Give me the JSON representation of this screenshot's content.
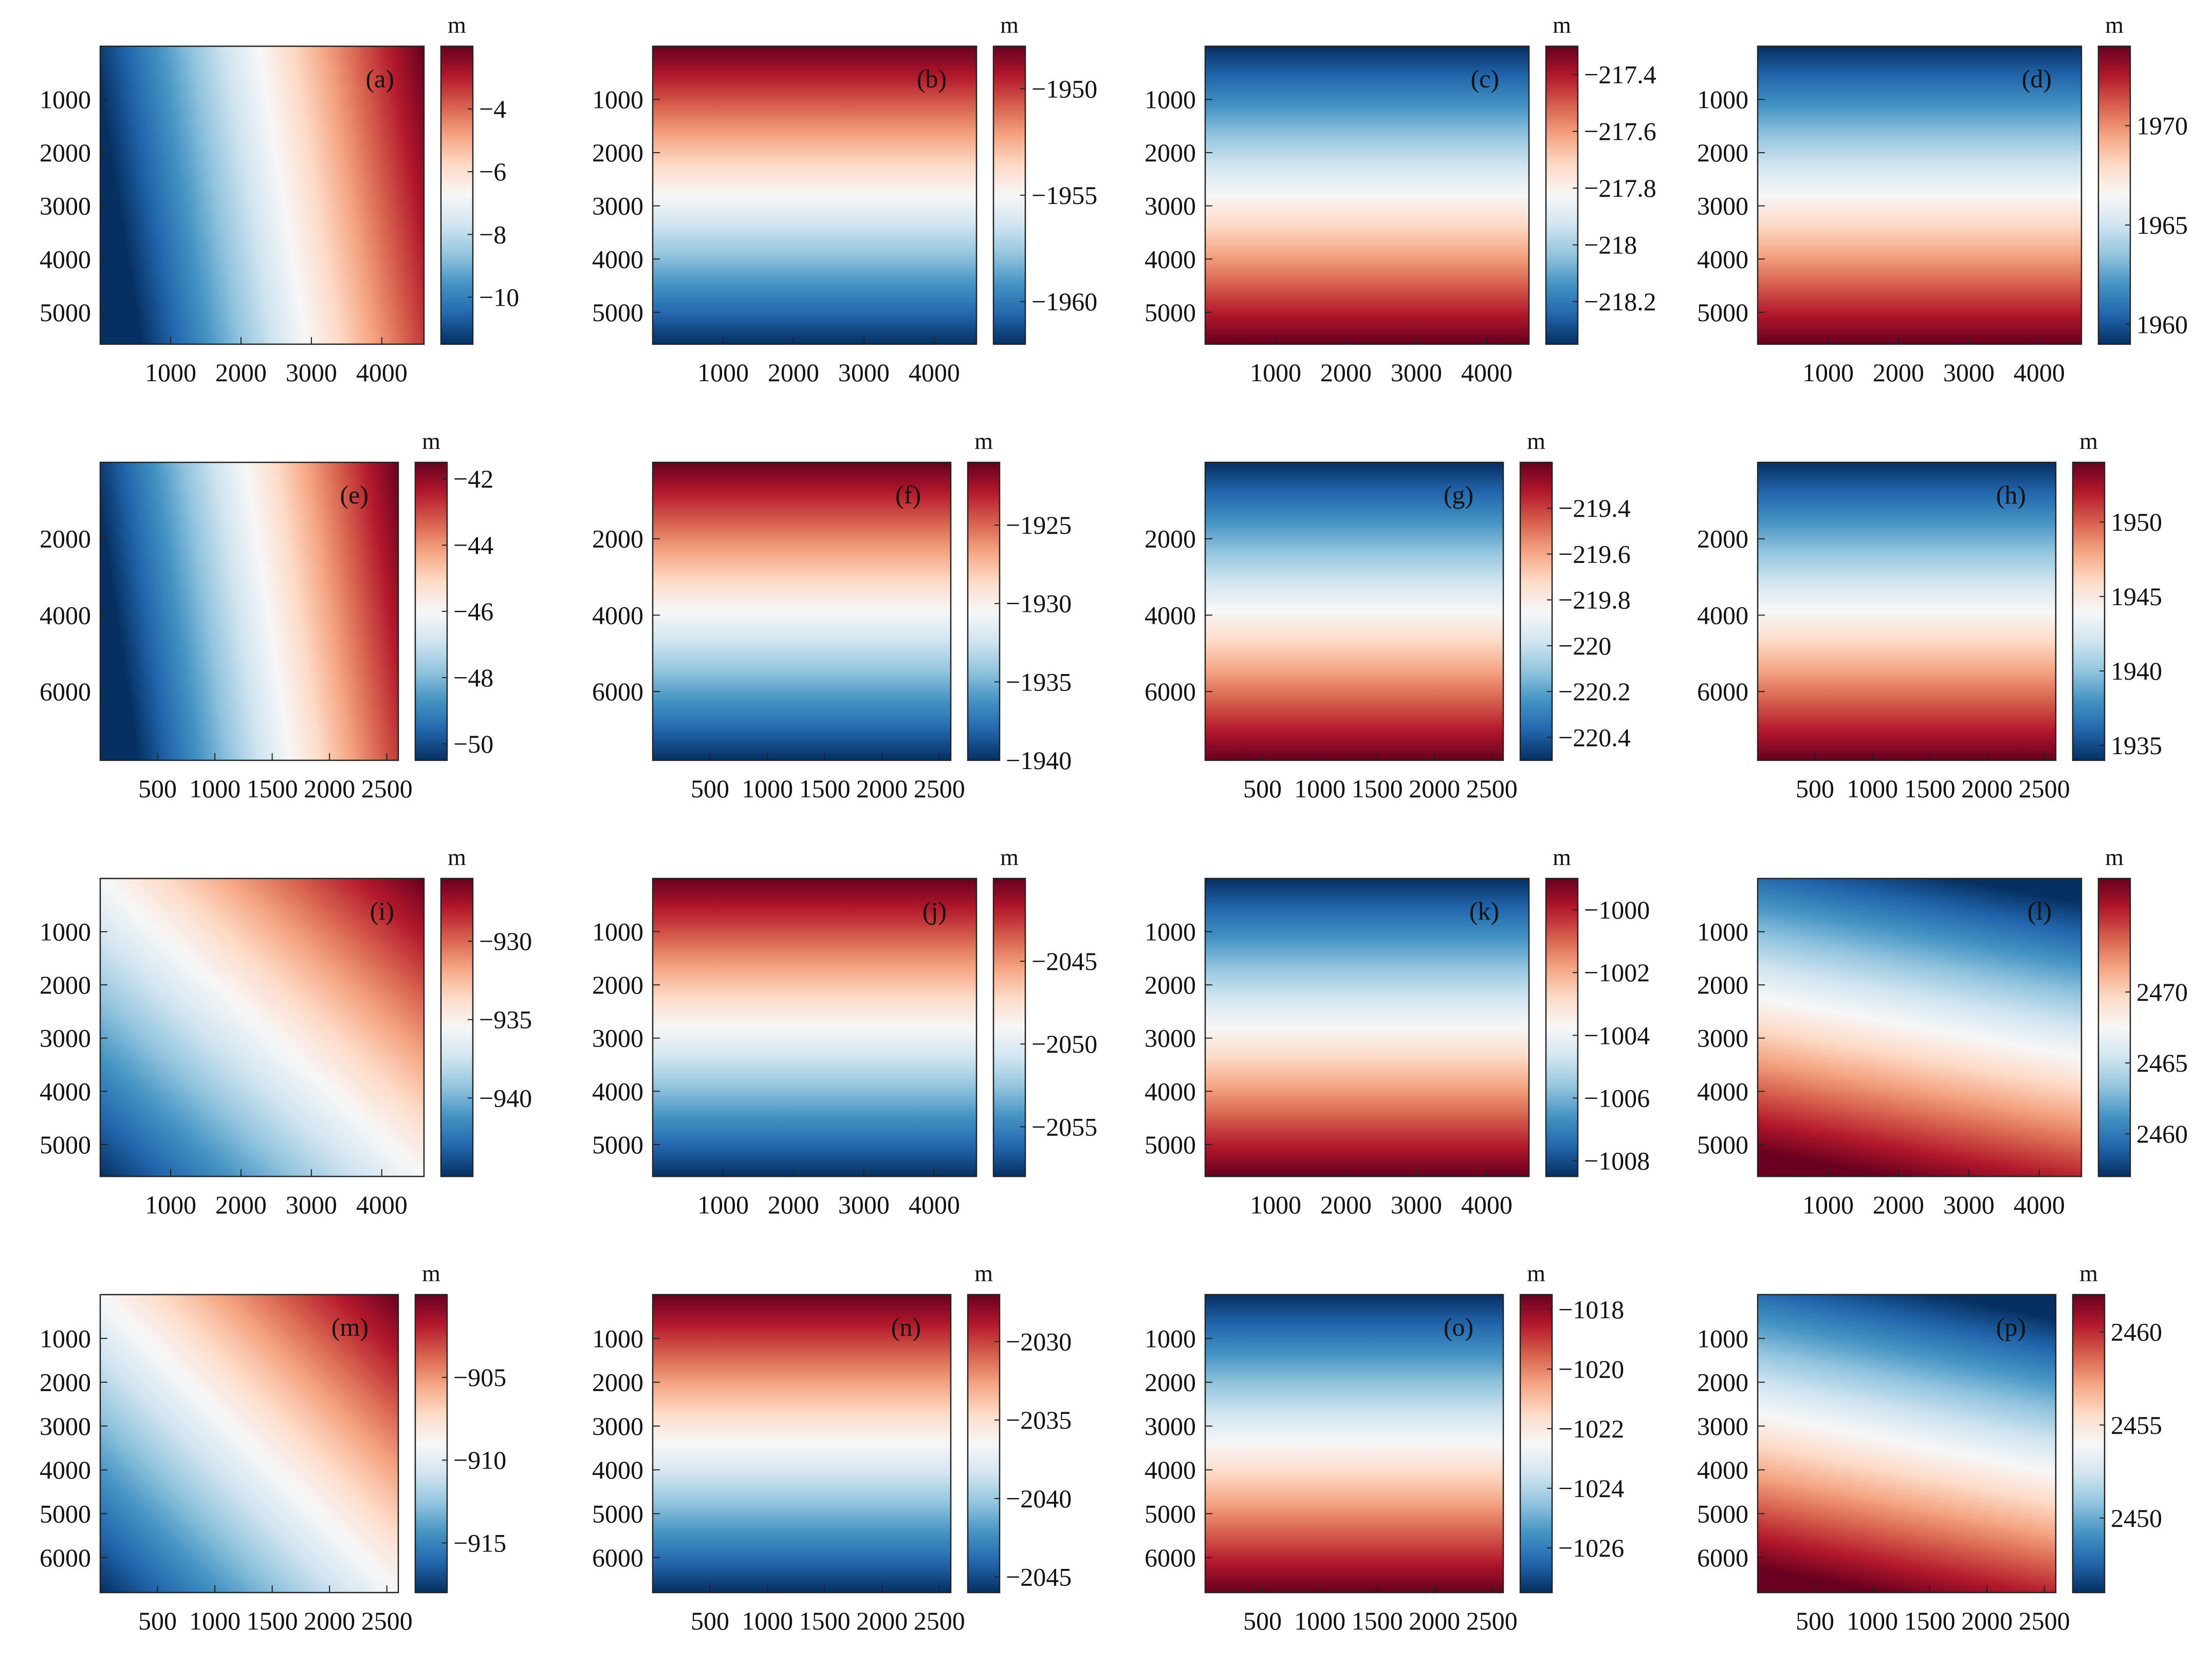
{
  "figure": {
    "unit_label": "m",
    "colormap": [
      "#053061",
      "#2166ac",
      "#4393c3",
      "#92c5de",
      "#d1e5f0",
      "#f7f7f7",
      "#fddbc7",
      "#f4a582",
      "#d6604d",
      "#b2182b",
      "#67001f"
    ]
  },
  "chart_data": [
    {
      "id": "a",
      "label": "(a)",
      "type": "heatmap",
      "gradient": "x",
      "xlim": [
        0,
        4600
      ],
      "ylim": [
        0,
        5600
      ],
      "xticks": [
        1000,
        2000,
        3000,
        4000
      ],
      "yticks": [
        1000,
        2000,
        3000,
        4000,
        5000
      ],
      "clim": [
        -11.5,
        -2
      ],
      "cbar_ticks": [
        -10,
        -8,
        -6,
        -4
      ]
    },
    {
      "id": "b",
      "label": "(b)",
      "type": "heatmap",
      "gradient": "y",
      "xlim": [
        0,
        4600
      ],
      "ylim": [
        0,
        5600
      ],
      "xticks": [
        1000,
        2000,
        3000,
        4000
      ],
      "yticks": [
        1000,
        2000,
        3000,
        4000,
        5000
      ],
      "clim": [
        -1962,
        -1948
      ],
      "cbar_ticks": [
        -1960,
        -1955,
        -1950
      ]
    },
    {
      "id": "c",
      "label": "(c)",
      "type": "heatmap",
      "gradient": "y",
      "xlim": [
        0,
        4600
      ],
      "ylim": [
        0,
        5600
      ],
      "xticks": [
        1000,
        2000,
        3000,
        4000
      ],
      "yticks": [
        1000,
        2000,
        3000,
        4000,
        5000
      ],
      "clim": [
        -218.35,
        -217.3
      ],
      "cbar_ticks": [
        -218.2,
        -218,
        -217.8,
        -217.6,
        -217.4
      ]
    },
    {
      "id": "d",
      "label": "(d)",
      "type": "heatmap",
      "gradient": "y",
      "xlim": [
        0,
        4600
      ],
      "ylim": [
        0,
        5600
      ],
      "xticks": [
        1000,
        2000,
        3000,
        4000
      ],
      "yticks": [
        1000,
        2000,
        3000,
        4000,
        5000
      ],
      "clim": [
        1959,
        1974
      ],
      "cbar_ticks": [
        1960,
        1965,
        1970
      ]
    },
    {
      "id": "e",
      "label": "(e)",
      "type": "heatmap",
      "gradient": "x",
      "xlim": [
        0,
        2600
      ],
      "ylim": [
        0,
        7800
      ],
      "xticks": [
        500,
        1000,
        1500,
        2000,
        2500
      ],
      "yticks": [
        2000,
        4000,
        6000
      ],
      "clim": [
        -50.5,
        -41.5
      ],
      "cbar_ticks": [
        -50,
        -48,
        -46,
        -44,
        -42
      ]
    },
    {
      "id": "f",
      "label": "(f)",
      "type": "heatmap",
      "gradient": "y",
      "xlim": [
        0,
        2600
      ],
      "ylim": [
        0,
        7800
      ],
      "xticks": [
        500,
        1000,
        1500,
        2000,
        2500
      ],
      "yticks": [
        2000,
        4000,
        6000
      ],
      "clim": [
        -1940,
        -1921
      ],
      "cbar_ticks": [
        -1940,
        -1935,
        -1930,
        -1925
      ]
    },
    {
      "id": "g",
      "label": "(g)",
      "type": "heatmap",
      "gradient": "y",
      "xlim": [
        0,
        2600
      ],
      "ylim": [
        0,
        7800
      ],
      "xticks": [
        500,
        1000,
        1500,
        2000,
        2500
      ],
      "yticks": [
        2000,
        4000,
        6000
      ],
      "clim": [
        -220.5,
        -219.2
      ],
      "cbar_ticks": [
        -220.4,
        -220.2,
        -220,
        -219.8,
        -219.6,
        -219.4
      ]
    },
    {
      "id": "h",
      "label": "(h)",
      "type": "heatmap",
      "gradient": "y",
      "xlim": [
        0,
        2600
      ],
      "ylim": [
        0,
        7800
      ],
      "xticks": [
        500,
        1000,
        1500,
        2000,
        2500
      ],
      "yticks": [
        2000,
        4000,
        6000
      ],
      "clim": [
        1934,
        1954
      ],
      "cbar_ticks": [
        1935,
        1940,
        1945,
        1950
      ]
    },
    {
      "id": "i",
      "label": "(i)",
      "type": "heatmap",
      "gradient": "diag",
      "xlim": [
        0,
        4600
      ],
      "ylim": [
        0,
        5600
      ],
      "xticks": [
        1000,
        2000,
        3000,
        4000
      ],
      "yticks": [
        1000,
        2000,
        3000,
        4000,
        5000
      ],
      "clim": [
        -945,
        -926
      ],
      "cbar_ticks": [
        -940,
        -935,
        -930
      ]
    },
    {
      "id": "j",
      "label": "(j)",
      "type": "heatmap",
      "gradient": "y",
      "xlim": [
        0,
        4600
      ],
      "ylim": [
        0,
        5600
      ],
      "xticks": [
        1000,
        2000,
        3000,
        4000
      ],
      "yticks": [
        1000,
        2000,
        3000,
        4000,
        5000
      ],
      "clim": [
        -2058,
        -2040
      ],
      "cbar_ticks": [
        -2055,
        -2050,
        -2045
      ]
    },
    {
      "id": "k",
      "label": "(k)",
      "type": "heatmap",
      "gradient": "y",
      "xlim": [
        0,
        4600
      ],
      "ylim": [
        0,
        5600
      ],
      "xticks": [
        1000,
        2000,
        3000,
        4000
      ],
      "yticks": [
        1000,
        2000,
        3000,
        4000,
        5000
      ],
      "clim": [
        -1008.5,
        -999
      ],
      "cbar_ticks": [
        -1008,
        -1006,
        -1004,
        -1002,
        -1000
      ]
    },
    {
      "id": "l",
      "label": "(l)",
      "type": "heatmap",
      "gradient": "diag-up",
      "xlim": [
        0,
        4600
      ],
      "ylim": [
        0,
        5600
      ],
      "xticks": [
        1000,
        2000,
        3000,
        4000
      ],
      "yticks": [
        1000,
        2000,
        3000,
        4000,
        5000
      ],
      "clim": [
        2457,
        2478
      ],
      "cbar_ticks": [
        2460,
        2465,
        2470
      ]
    },
    {
      "id": "m",
      "label": "(m)",
      "type": "heatmap",
      "gradient": "diag",
      "xlim": [
        0,
        2600
      ],
      "ylim": [
        0,
        6800
      ],
      "xticks": [
        500,
        1000,
        1500,
        2000,
        2500
      ],
      "yticks": [
        1000,
        2000,
        3000,
        4000,
        5000,
        6000
      ],
      "clim": [
        -918,
        -900
      ],
      "cbar_ticks": [
        -915,
        -910,
        -905
      ]
    },
    {
      "id": "n",
      "label": "(n)",
      "type": "heatmap",
      "gradient": "y",
      "xlim": [
        0,
        2600
      ],
      "ylim": [
        0,
        6800
      ],
      "xticks": [
        500,
        1000,
        1500,
        2000,
        2500
      ],
      "yticks": [
        1000,
        2000,
        3000,
        4000,
        5000,
        6000
      ],
      "clim": [
        -2046,
        -2027
      ],
      "cbar_ticks": [
        -2045,
        -2040,
        -2035,
        -2030
      ]
    },
    {
      "id": "o",
      "label": "(o)",
      "type": "heatmap",
      "gradient": "y",
      "xlim": [
        0,
        2600
      ],
      "ylim": [
        0,
        6800
      ],
      "xticks": [
        500,
        1000,
        1500,
        2000,
        2500
      ],
      "yticks": [
        1000,
        2000,
        3000,
        4000,
        5000,
        6000
      ],
      "clim": [
        -1027.5,
        -1017.5
      ],
      "cbar_ticks": [
        -1026,
        -1024,
        -1022,
        -1020,
        -1018
      ]
    },
    {
      "id": "p",
      "label": "(p)",
      "type": "heatmap",
      "gradient": "diag-up",
      "xlim": [
        0,
        2600
      ],
      "ylim": [
        0,
        6800
      ],
      "xticks": [
        500,
        1000,
        1500,
        2000,
        2500
      ],
      "yticks": [
        1000,
        2000,
        3000,
        4000,
        5000,
        6000
      ],
      "clim": [
        2446,
        2462
      ],
      "cbar_ticks": [
        2450,
        2455,
        2460
      ]
    }
  ]
}
